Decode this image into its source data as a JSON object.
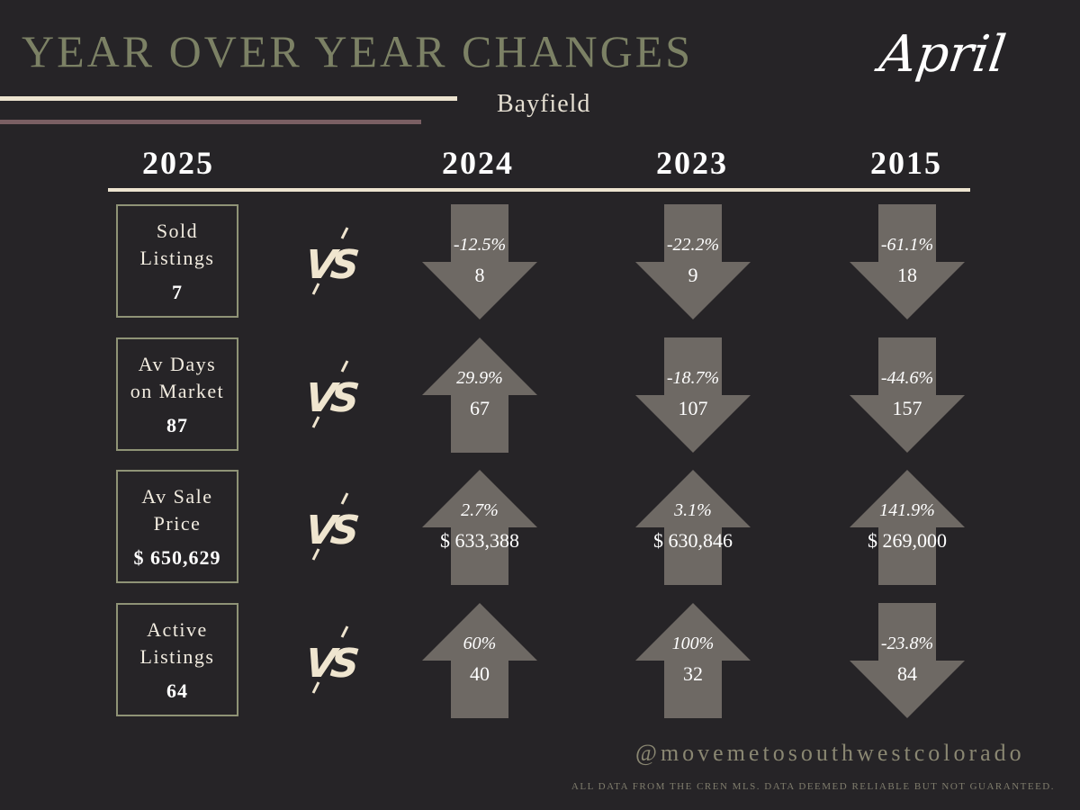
{
  "header": {
    "title": "YEAR OVER YEAR CHANGES",
    "month": "April",
    "subtitle": "Bayfield"
  },
  "years": [
    "2025",
    "2024",
    "2023",
    "2015"
  ],
  "colors": {
    "background": "#262427",
    "title": "#7c8165",
    "arrow": "#6e6964",
    "rule_cream": "#ece3cf",
    "rule_mauve": "#7a5f63"
  },
  "vs_label": "VS",
  "rows": [
    {
      "label": "Sold\nListings",
      "value": "7",
      "comparisons": [
        {
          "direction": "down",
          "pct": "-12.5%",
          "value": "8"
        },
        {
          "direction": "down",
          "pct": "-22.2%",
          "value": "9"
        },
        {
          "direction": "down",
          "pct": "-61.1%",
          "value": "18"
        }
      ]
    },
    {
      "label": "Av Days\non Market",
      "value": "87",
      "comparisons": [
        {
          "direction": "up",
          "pct": "29.9%",
          "value": "67"
        },
        {
          "direction": "down",
          "pct": "-18.7%",
          "value": "107"
        },
        {
          "direction": "down",
          "pct": "-44.6%",
          "value": "157"
        }
      ]
    },
    {
      "label": "Av Sale\nPrice",
      "value": "$ 650,629",
      "comparisons": [
        {
          "direction": "up",
          "pct": "2.7%",
          "value": "$ 633,388"
        },
        {
          "direction": "up",
          "pct": "3.1%",
          "value": "$ 630,846"
        },
        {
          "direction": "up",
          "pct": "141.9%",
          "value": "$ 269,000"
        }
      ]
    },
    {
      "label": "Active\nListings",
      "value": "64",
      "comparisons": [
        {
          "direction": "up",
          "pct": "60%",
          "value": "40"
        },
        {
          "direction": "up",
          "pct": "100%",
          "value": "32"
        },
        {
          "direction": "down",
          "pct": "-23.8%",
          "value": "84"
        }
      ]
    }
  ],
  "footer": {
    "handle": "@movemetosouthwestcolorado",
    "disclaimer": "ALL DATA FROM THE CREN MLS. DATA DEEMED RELIABLE BUT NOT GUARANTEED."
  }
}
